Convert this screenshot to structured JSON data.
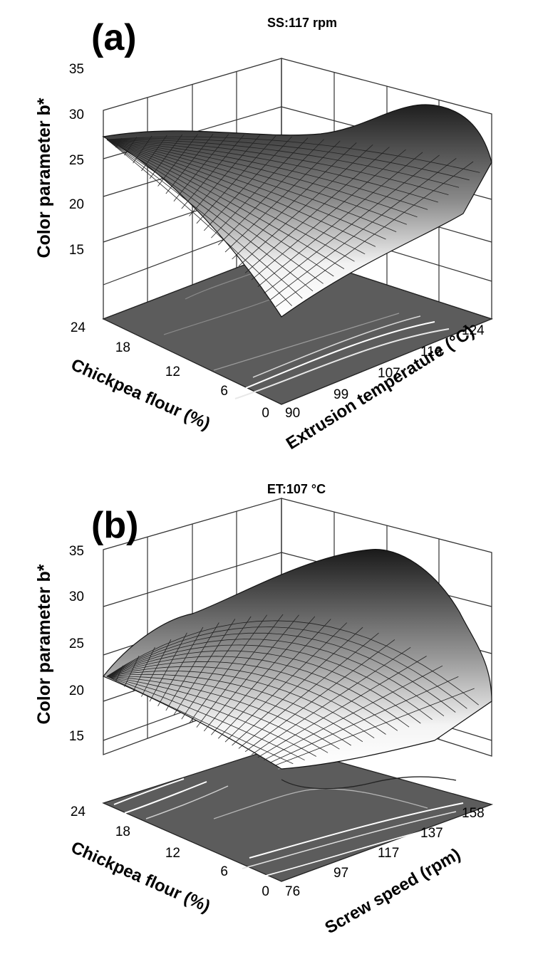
{
  "chart_data": [
    {
      "type": "surface",
      "panel_label": "(a)",
      "title": "SS:117 rpm",
      "zlabel": "Color parameter b*",
      "xlabel": "Chickpea flour (%)",
      "ylabel": "Extrusion temperature (°C)",
      "x_ticks": [
        "0",
        "6",
        "12",
        "18",
        "24"
      ],
      "y_ticks": [
        "90",
        "99",
        "107",
        "116",
        "124"
      ],
      "z_ticks": [
        "15",
        "20",
        "25",
        "30",
        "35"
      ],
      "xlim": [
        0,
        24
      ],
      "ylim": [
        90,
        124
      ],
      "zlim": [
        10,
        35
      ],
      "surface_samples": {
        "x": [
          0,
          6,
          12,
          18,
          24
        ],
        "y": [
          90,
          99,
          107,
          116,
          124
        ],
        "z": [
          [
            13.0,
            19.5,
            23.0,
            23.5,
            21.0
          ],
          [
            17.5,
            24.0,
            27.5,
            28.0,
            25.5
          ],
          [
            20.0,
            26.5,
            30.0,
            30.5,
            28.0
          ],
          [
            21.0,
            27.0,
            30.0,
            30.0,
            27.5
          ],
          [
            27.0,
            29.0,
            30.5,
            30.5,
            28.0
          ]
        ]
      }
    },
    {
      "type": "surface",
      "panel_label": "(b)",
      "title": "ET:107 °C",
      "zlabel": "Color parameter b*",
      "xlabel": "Chickpea flour (%)",
      "ylabel": "Screw speed (rpm)",
      "x_ticks": [
        "0",
        "6",
        "12",
        "18",
        "24"
      ],
      "y_ticks": [
        "76",
        "97",
        "117",
        "137",
        "158"
      ],
      "z_ticks": [
        "15",
        "20",
        "25",
        "30",
        "35"
      ],
      "xlim": [
        0,
        24
      ],
      "ylim": [
        76,
        158
      ],
      "zlim": [
        10,
        35
      ],
      "surface_samples": {
        "x": [
          0,
          6,
          12,
          18,
          24
        ],
        "y": [
          76,
          97,
          117,
          137,
          158
        ],
        "z": [
          [
            16.0,
            17.0,
            19.0,
            19.5,
            19.0
          ],
          [
            21.5,
            24.0,
            26.0,
            26.5,
            26.0
          ],
          [
            24.5,
            28.0,
            30.5,
            31.5,
            31.0
          ],
          [
            25.0,
            28.5,
            31.0,
            32.0,
            31.5
          ],
          [
            23.0,
            26.0,
            28.5,
            29.5,
            29.5
          ]
        ]
      }
    }
  ]
}
